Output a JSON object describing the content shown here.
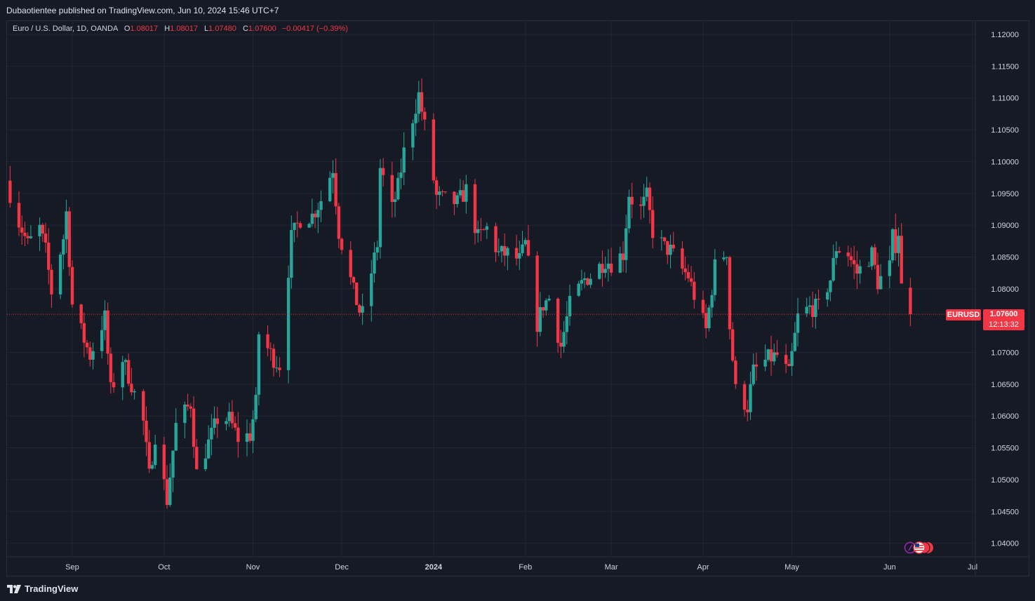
{
  "publish_line": "Dubaotientee published on TradingView.com, Jun 10, 2024 15:46 UTC+7",
  "legend": {
    "symbol": "Euro / U.S. Dollar, 1D, OANDA",
    "o_label": "O",
    "o_value": "1.08017",
    "h_label": "H",
    "h_value": "1.08017",
    "l_label": "L",
    "l_value": "1.07480",
    "c_label": "C",
    "c_value": "1.07600",
    "change": "−0.00417 (−0.39%)"
  },
  "price_tag": {
    "symbol": "EURUSD",
    "price": "1.07600",
    "countdown": "12:13:32"
  },
  "footer": {
    "logo_text": "TradingView"
  },
  "colors": {
    "up": "#26a69a",
    "down": "#f23645",
    "background": "#161a25",
    "grid": "#232632",
    "axis_text": "#d1d4dc"
  },
  "icons": [
    "tradingview-logo-icon",
    "us-flag-icon",
    "economic-event-icon"
  ],
  "chart_data": {
    "type": "candlestick",
    "title": "Euro / U.S. Dollar, 1D, OANDA",
    "y_axis_side": "right",
    "ylim": [
      1.0385,
      1.1225
    ],
    "y_ticks": [
      "1.12000",
      "1.11500",
      "1.11000",
      "1.10500",
      "1.10000",
      "1.09500",
      "1.09000",
      "1.08500",
      "1.08000",
      "1.07600",
      "1.07000",
      "1.06500",
      "1.06000",
      "1.05500",
      "1.05000",
      "1.04500",
      "1.04000"
    ],
    "x_ticks": [
      {
        "label": "Sep",
        "date": "2023-09-01"
      },
      {
        "label": "Oct",
        "date": "2023-10-02"
      },
      {
        "label": "Nov",
        "date": "2023-11-01"
      },
      {
        "label": "Dec",
        "date": "2023-12-01"
      },
      {
        "label": "2024",
        "date": "2024-01-01"
      },
      {
        "label": "Feb",
        "date": "2024-02-01"
      },
      {
        "label": "Mar",
        "date": "2024-03-01"
      },
      {
        "label": "Apr",
        "date": "2024-04-01"
      },
      {
        "label": "May",
        "date": "2024-05-01"
      },
      {
        "label": "Jun",
        "date": "2024-06-03"
      },
      {
        "label": "Jul",
        "date": "2024-07-01"
      }
    ],
    "grid": true,
    "last_price": 1.076,
    "series": [
      {
        "name": "EURUSD",
        "close_path": [
          [
            "2023-08-11",
            1.095
          ],
          [
            "2023-08-14",
            1.0905
          ],
          [
            "2023-08-17",
            1.087
          ],
          [
            "2023-08-21",
            1.0895
          ],
          [
            "2023-08-23",
            1.086
          ],
          [
            "2023-08-25",
            1.0795
          ],
          [
            "2023-08-29",
            1.088
          ],
          [
            "2023-08-30",
            1.092
          ],
          [
            "2023-09-01",
            1.0775
          ],
          [
            "2023-09-05",
            1.072
          ],
          [
            "2023-09-07",
            1.0695
          ],
          [
            "2023-09-12",
            1.0755
          ],
          [
            "2023-09-14",
            1.064
          ],
          [
            "2023-09-18",
            1.069
          ],
          [
            "2023-09-21",
            1.065
          ],
          [
            "2023-09-25",
            1.059
          ],
          [
            "2023-09-27",
            1.0505
          ],
          [
            "2023-09-29",
            1.057
          ],
          [
            "2023-10-03",
            1.0468
          ],
          [
            "2023-10-06",
            1.0585
          ],
          [
            "2023-10-11",
            1.062
          ],
          [
            "2023-10-13",
            1.051
          ],
          [
            "2023-10-16",
            1.0545
          ],
          [
            "2023-10-20",
            1.0595
          ],
          [
            "2023-10-24",
            1.0595
          ],
          [
            "2023-10-27",
            1.0565
          ],
          [
            "2023-10-31",
            1.057
          ],
          [
            "2023-11-02",
            1.062
          ],
          [
            "2023-11-03",
            1.073
          ],
          [
            "2023-11-08",
            1.069
          ],
          [
            "2023-11-10",
            1.068
          ],
          [
            "2023-11-14",
            1.088
          ],
          [
            "2023-11-17",
            1.091
          ],
          [
            "2023-11-21",
            1.0915
          ],
          [
            "2023-11-24",
            1.094
          ],
          [
            "2023-11-28",
            1.099
          ],
          [
            "2023-11-30",
            1.089
          ],
          [
            "2023-12-05",
            1.0795
          ],
          [
            "2023-12-07",
            1.0765
          ],
          [
            "2023-12-08",
            1.076
          ],
          [
            "2023-12-13",
            1.087
          ],
          [
            "2023-12-14",
            1.099
          ],
          [
            "2023-12-18",
            1.0925
          ],
          [
            "2023-12-20",
            1.096
          ],
          [
            "2023-12-22",
            1.1015
          ],
          [
            "2023-12-27",
            1.1105
          ],
          [
            "2023-12-29",
            1.1055
          ],
          [
            "2024-01-02",
            1.0945
          ],
          [
            "2024-01-05",
            1.094
          ],
          [
            "2024-01-09",
            1.0935
          ],
          [
            "2024-01-12",
            1.0955
          ],
          [
            "2024-01-16",
            1.088
          ],
          [
            "2024-01-19",
            1.0895
          ],
          [
            "2024-01-23",
            1.0855
          ],
          [
            "2024-01-26",
            1.0855
          ],
          [
            "2024-01-30",
            1.0845
          ],
          [
            "2024-02-01",
            1.087
          ],
          [
            "2024-02-05",
            1.0745
          ],
          [
            "2024-02-07",
            1.0775
          ],
          [
            "2024-02-09",
            1.0785
          ],
          [
            "2024-02-13",
            1.071
          ],
          [
            "2024-02-16",
            1.0775
          ],
          [
            "2024-02-21",
            1.0815
          ],
          [
            "2024-02-23",
            1.082
          ],
          [
            "2024-02-28",
            1.0845
          ],
          [
            "2024-03-01",
            1.084
          ],
          [
            "2024-03-05",
            1.0855
          ],
          [
            "2024-03-07",
            1.095
          ],
          [
            "2024-03-08",
            1.094
          ],
          [
            "2024-03-11",
            1.0925
          ],
          [
            "2024-03-13",
            1.0945
          ],
          [
            "2024-03-15",
            1.089
          ],
          [
            "2024-03-19",
            1.0865
          ],
          [
            "2024-03-21",
            1.086
          ],
          [
            "2024-03-25",
            1.083
          ],
          [
            "2024-03-27",
            1.082
          ],
          [
            "2024-03-29",
            1.079
          ],
          [
            "2024-04-02",
            1.0735
          ],
          [
            "2024-04-05",
            1.0835
          ],
          [
            "2024-04-09",
            1.086
          ],
          [
            "2024-04-10",
            1.074
          ],
          [
            "2024-04-12",
            1.064
          ],
          [
            "2024-04-16",
            1.0615
          ],
          [
            "2024-04-18",
            1.067
          ],
          [
            "2024-04-23",
            1.069
          ],
          [
            "2024-04-26",
            1.0695
          ],
          [
            "2024-04-30",
            1.0665
          ],
          [
            "2024-05-03",
            1.0755
          ],
          [
            "2024-05-07",
            1.077
          ],
          [
            "2024-05-10",
            1.077
          ],
          [
            "2024-05-14",
            1.0815
          ],
          [
            "2024-05-16",
            1.0865
          ],
          [
            "2024-05-20",
            1.0855
          ],
          [
            "2024-05-23",
            1.0825
          ],
          [
            "2024-05-28",
            1.0855
          ],
          [
            "2024-05-30",
            1.081
          ],
          [
            "2024-06-03",
            1.0835
          ],
          [
            "2024-06-04",
            1.088
          ],
          [
            "2024-06-05",
            1.087
          ],
          [
            "2024-06-06",
            1.089
          ],
          [
            "2024-06-07",
            1.0802
          ],
          [
            "2024-06-10",
            1.076
          ]
        ]
      }
    ]
  }
}
